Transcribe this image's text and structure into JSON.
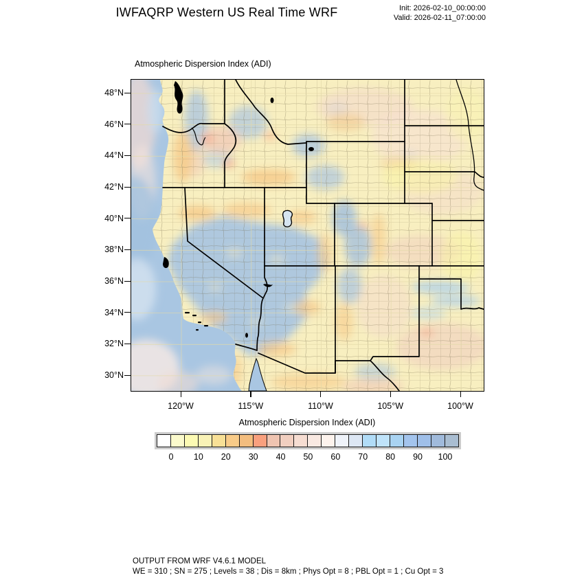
{
  "header": {
    "title": "IWFAQRP Western US Real Time WRF",
    "init_label": "Init: 2026-02-10_00:00:00",
    "valid_label": "Valid: 2026-02-11_07:00:00"
  },
  "map": {
    "subtitle": "Atmospheric Dispersion Index   (ADI)",
    "lat_ticks": [
      "48°N",
      "46°N",
      "44°N",
      "42°N",
      "40°N",
      "38°N",
      "36°N",
      "34°N",
      "32°N",
      "30°N"
    ],
    "lon_ticks": [
      "120°W",
      "115°W",
      "110°W",
      "105°W",
      "100°W"
    ]
  },
  "colorbar": {
    "title": "Atmospheric Dispersion Index  (ADI)",
    "tick_labels": [
      "0",
      "10",
      "20",
      "30",
      "40",
      "50",
      "60",
      "70",
      "80",
      "90",
      "100"
    ],
    "cell_colors": [
      "#FFFFFF",
      "#FBFACC",
      "#FCFAB3",
      "#F9F2B6",
      "#F8E096",
      "#F8CB88",
      "#F3BD7E",
      "#F9A07E",
      "#EFC4B1",
      "#F1CFC0",
      "#F6DDD2",
      "#F9E9E2",
      "#FDF3ED",
      "#EFF3FA",
      "#DDE7F4",
      "#B1DCF7",
      "#BFE3FA",
      "#A9D3F2",
      "#A3C4ED",
      "#9FBFE9",
      "#A0BADB",
      "#A9BDD1"
    ]
  },
  "footer": {
    "line1": "OUTPUT FROM WRF V4.6.1 MODEL",
    "line2": "WE = 310 ; SN = 275 ; Levels = 38 ; Dis = 8km ; Phys Opt = 8 ; PBL Opt = 1 ; Cu Opt = 3"
  },
  "chart_data": {
    "type": "heatmap",
    "title": "Atmospheric Dispersion Index  (ADI)",
    "model_header": "IWFAQRP Western US Real Time WRF",
    "init_time": "2026-02-10_00:00:00",
    "valid_time": "2026-02-11_07:00:00",
    "x_tick_labels": [
      "120°W",
      "115°W",
      "110°W",
      "105°W",
      "100°W"
    ],
    "y_tick_labels": [
      "48°N",
      "46°N",
      "44°N",
      "42°N",
      "40°N",
      "38°N",
      "36°N",
      "34°N",
      "32°N",
      "30°N"
    ],
    "colorbar_tick_values": [
      0,
      10,
      20,
      30,
      40,
      50,
      60,
      70,
      80,
      90,
      100
    ],
    "colorbar_level_step": 5,
    "colorbar_cell_colors": [
      "#FFFFFF",
      "#FBFACC",
      "#FCFAB3",
      "#F9F2B6",
      "#F8E096",
      "#F8CB88",
      "#F3BD7E",
      "#F9A07E",
      "#EFC4B1",
      "#F1CFC0",
      "#F6DDD2",
      "#F9E9E2",
      "#FDF3ED",
      "#EFF3FA",
      "#DDE7F4",
      "#B1DCF7",
      "#BFE3FA",
      "#A9D3F2",
      "#A3C4ED",
      "#9FBFE9",
      "#A0BADB",
      "#A9BDD1"
    ],
    "legend_position": "bottom",
    "grid": true,
    "pattern_summary": "High ADI (blue, 70-100) over Pacific Ocean, California, Nevada, western Utah, central Arizona and mountain areas; low-moderate ADI (yellow/orange/pink, 0-50) over plains of Montana, Dakotas, Nebraska, Kansas, Oklahoma, Texas panhandle and the Columbia basin."
  }
}
